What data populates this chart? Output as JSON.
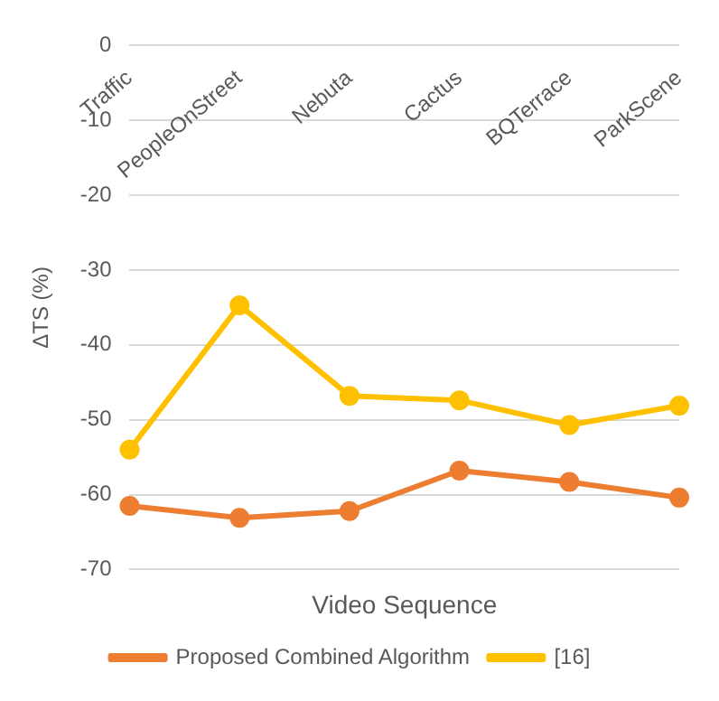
{
  "chart_data": {
    "type": "line",
    "xlabel": "Video Sequence",
    "ylabel": "ΔTS (%)",
    "categories": [
      "Traffic",
      "PeopleOnStreet",
      "Nebuta",
      "Cactus",
      "BQTerrace",
      "ParkScene"
    ],
    "series": [
      {
        "name": "Proposed Combined Algorithm",
        "color": "#ed7d31",
        "values": [
          -61.5,
          -63.1,
          -62.2,
          -56.8,
          -58.3,
          -60.4
        ]
      },
      {
        "name": "[16]",
        "color": "#ffc000",
        "values": [
          -54,
          -34.7,
          -46.8,
          -47.4,
          -50.7,
          -48.1
        ]
      }
    ],
    "ylim": [
      -70,
      0
    ],
    "yticks": [
      -70,
      -60,
      -50,
      -40,
      -30,
      -20,
      -10,
      0
    ],
    "grid": "y",
    "legend": "bottom",
    "marker": "circle",
    "line_style": "solid"
  }
}
